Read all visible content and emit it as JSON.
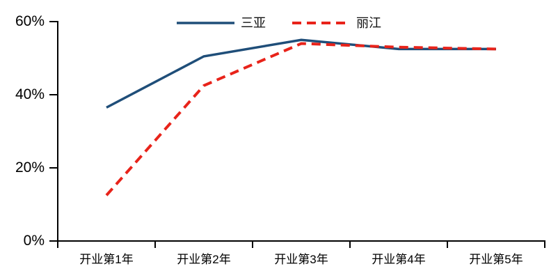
{
  "chart_data": {
    "type": "line",
    "categories": [
      "开业第1年",
      "开业第2年",
      "开业第3年",
      "开业第4年",
      "开业第5年"
    ],
    "series": [
      {
        "name": "三亚",
        "color": "#1F4E79",
        "style": "solid",
        "values": [
          36.5,
          50.5,
          55.0,
          52.5,
          52.5
        ]
      },
      {
        "name": "丽江",
        "color": "#E8231A",
        "style": "dashed",
        "values": [
          12.5,
          42.5,
          54.0,
          53.0,
          52.5
        ]
      }
    ],
    "title": "",
    "xlabel": "",
    "ylabel": "",
    "y_ticks": [
      {
        "value": 0,
        "label": "0%"
      },
      {
        "value": 20,
        "label": "20%"
      },
      {
        "value": 40,
        "label": "40%"
      },
      {
        "value": 60,
        "label": "60%"
      }
    ],
    "ylim": [
      0,
      60
    ],
    "grid": false,
    "legend_position": "top",
    "axis_color": "#000000"
  }
}
